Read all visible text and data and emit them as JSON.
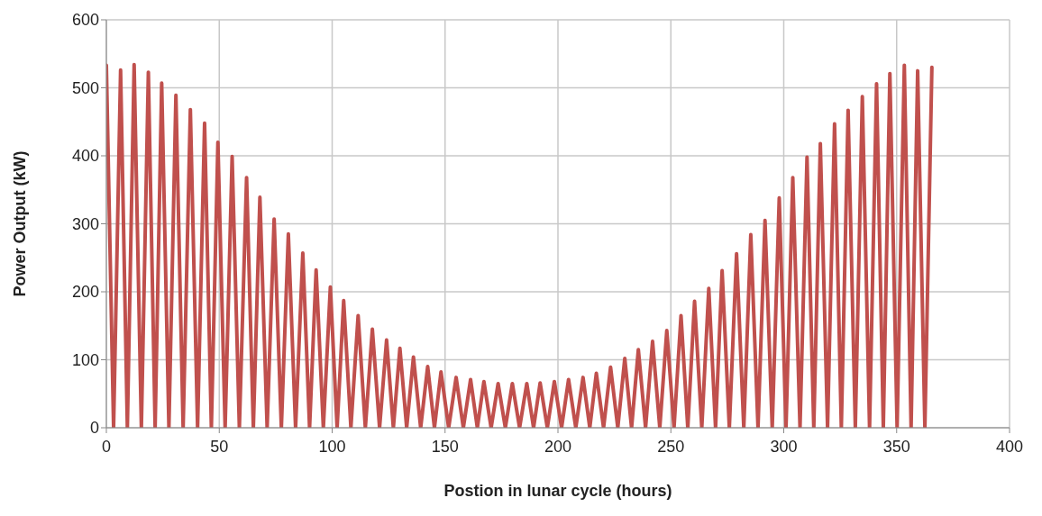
{
  "chart_data": {
    "type": "line",
    "xlabel": "Postion in lunar cycle (hours)",
    "ylabel": "Power Output (kW)",
    "x": [
      0,
      3.2,
      6.3,
      9.3,
      12.3,
      15.5,
      18.6,
      21.6,
      24.5,
      27.7,
      30.8,
      34.0,
      37.2,
      40.4,
      43.5,
      46.5,
      49.4,
      52.6,
      55.7,
      58.9,
      62.1,
      65.1,
      68.0,
      71.2,
      74.3,
      77.5,
      80.6,
      83.8,
      87.0,
      90.0,
      92.9,
      96.1,
      99.2,
      102.2,
      105.1,
      108.3,
      111.5,
      114.7,
      117.8,
      121.0,
      124.1,
      127.1,
      130.0,
      133.0,
      136.0,
      139.2,
      142.3,
      145.3,
      148.2,
      151.6,
      154.9,
      158.1,
      161.3,
      164.3,
      167.2,
      170.4,
      173.5,
      176.7,
      179.8,
      183.0,
      186.2,
      189.2,
      192.1,
      195.3,
      198.4,
      201.6,
      204.7,
      207.9,
      211.1,
      214.1,
      217.0,
      220.2,
      223.3,
      226.5,
      229.6,
      232.6,
      235.6,
      238.8,
      241.9,
      245.1,
      248.2,
      251.4,
      254.5,
      257.5,
      260.5,
      263.7,
      266.8,
      269.8,
      272.7,
      275.9,
      279.1,
      282.3,
      285.4,
      288.6,
      291.7,
      294.9,
      298.0,
      301.0,
      304.0,
      307.2,
      310.3,
      313.3,
      316.2,
      319.4,
      322.5,
      325.5,
      328.5,
      331.7,
      334.8,
      338.0,
      341.1,
      344.1,
      347.0,
      350.2,
      353.4,
      356.4,
      359.3,
      362.5,
      365.6
    ],
    "series": [
      {
        "color": "#c0504d",
        "values": [
          533,
          0,
          526,
          0,
          534,
          0,
          523,
          0,
          507,
          0,
          489,
          0,
          468,
          0,
          448,
          0,
          420,
          0,
          399,
          0,
          368,
          0,
          339,
          0,
          307,
          0,
          285,
          0,
          257,
          0,
          232,
          0,
          207,
          0,
          187,
          0,
          165,
          0,
          145,
          0,
          129,
          0,
          117,
          0,
          104,
          0,
          90,
          0,
          82,
          0,
          74,
          0,
          71,
          0,
          68,
          0,
          65,
          0,
          65,
          0,
          65,
          0,
          66,
          0,
          68,
          0,
          71,
          0,
          74,
          0,
          80,
          0,
          89,
          0,
          102,
          0,
          115,
          0,
          127,
          0,
          143,
          0,
          165,
          0,
          186,
          0,
          205,
          0,
          231,
          0,
          256,
          0,
          284,
          0,
          305,
          0,
          338,
          0,
          368,
          0,
          398,
          0,
          418,
          0,
          447,
          0,
          467,
          0,
          487,
          0,
          506,
          0,
          521,
          0,
          533,
          0,
          525,
          0,
          530
        ]
      }
    ],
    "xlim": [
      0,
      400
    ],
    "xticks": [
      0,
      50,
      100,
      150,
      200,
      250,
      300,
      350,
      400
    ],
    "ylim": [
      0,
      600
    ],
    "yticks": [
      0,
      100,
      200,
      300,
      400,
      500,
      600
    ],
    "grid": true,
    "marker": "none",
    "line_style": "solid"
  }
}
